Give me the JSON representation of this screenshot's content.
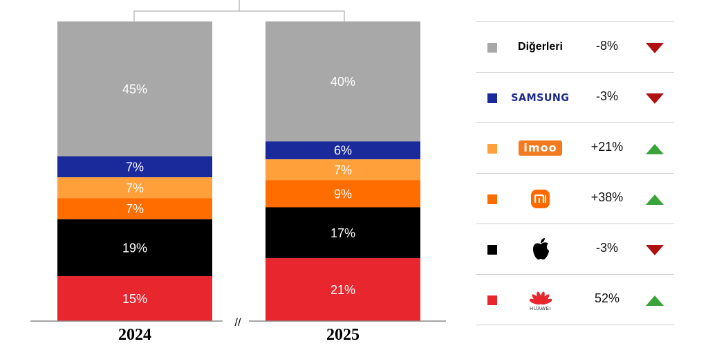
{
  "chart_data": {
    "type": "bar",
    "stacked": true,
    "categories": [
      "2024",
      "2025"
    ],
    "series": [
      {
        "name": "HUAWEI",
        "color": "#e8262e",
        "values": [
          15,
          21
        ]
      },
      {
        "name": "Apple",
        "color": "#000000",
        "values": [
          19,
          17
        ]
      },
      {
        "name": "Xiaomi",
        "color": "#ff6d00",
        "values": [
          7,
          9
        ]
      },
      {
        "name": "imoo",
        "color": "#ffa03a",
        "values": [
          7,
          7
        ]
      },
      {
        "name": "SAMSUNG",
        "color": "#1a2a9a",
        "values": [
          7,
          6
        ]
      },
      {
        "name": "Diğerleri",
        "color": "#a8a8a8",
        "values": [
          45,
          40
        ]
      }
    ],
    "value_labels": [
      [
        "15%",
        "21%"
      ],
      [
        "19%",
        "17%"
      ],
      [
        "7%",
        "9%"
      ],
      [
        "7%",
        "7%"
      ],
      [
        "7%",
        "6%"
      ],
      [
        "45%",
        "40%"
      ]
    ],
    "axis_break": "//",
    "ylim": [
      0,
      100
    ],
    "legend_placement": "right"
  },
  "legend": {
    "items": [
      {
        "brand": "Diğerleri",
        "icon": "others-text",
        "color": "#a8a8a8",
        "change": "-8%",
        "direction": "down"
      },
      {
        "brand": "SAMSUNG",
        "icon": "samsung-logo",
        "color": "#1a2a9a",
        "change": "-3%",
        "direction": "down"
      },
      {
        "brand": "imoo",
        "icon": "imoo-logo",
        "color": "#ffa03a",
        "change": "+21%",
        "direction": "up"
      },
      {
        "brand": "mi",
        "icon": "xiaomi-logo",
        "color": "#ff6d00",
        "change": "+38%",
        "direction": "up"
      },
      {
        "brand": "Apple",
        "icon": "apple-logo",
        "color": "#000000",
        "change": "-3%",
        "direction": "down"
      },
      {
        "brand": "HUAWEI",
        "icon": "huawei-logo",
        "color": "#e8262e",
        "change": "52%",
        "direction": "up"
      }
    ],
    "arrow_colors": {
      "up": "#3aa33a",
      "down": "#b01010"
    }
  }
}
